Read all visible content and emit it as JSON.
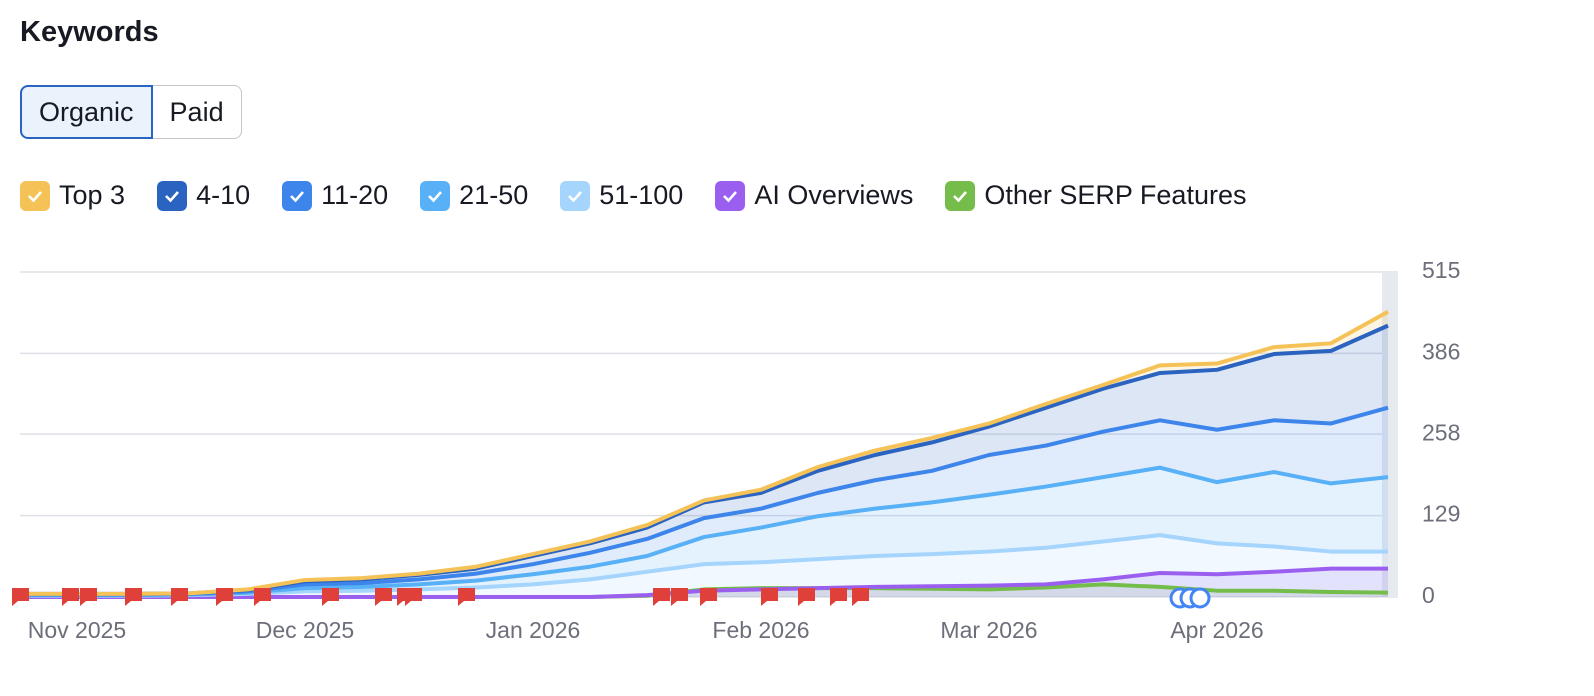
{
  "title": "Keywords",
  "tabs": [
    "Organic",
    "Paid"
  ],
  "chart_data": {
    "type": "line",
    "stacked": true,
    "categories": [
      null,
      "Nov 2025",
      null,
      null,
      null,
      "Dec 2025",
      null,
      null,
      null,
      "Jan 2026",
      null,
      null,
      null,
      "Feb 2026",
      null,
      null,
      null,
      "Mar 2026",
      null,
      null,
      null,
      "Apr 2026",
      null,
      null,
      null
    ],
    "series": [
      {
        "name": "Top 3",
        "color": "#f5c257",
        "stacked": true,
        "values": [
          0,
          0,
          0,
          0,
          1,
          2,
          2,
          2,
          3,
          3,
          3,
          4,
          3,
          5,
          6,
          7,
          7,
          5,
          6,
          6,
          12,
          10,
          11,
          12,
          22
        ]
      },
      {
        "name": "4-10",
        "color": "#2b63c0",
        "stacked": true,
        "values": [
          1,
          1,
          1,
          1,
          2,
          5,
          6,
          7,
          8,
          13,
          15,
          18,
          25,
          25,
          35,
          40,
          45,
          45,
          60,
          68,
          75,
          95,
          105,
          115,
          130
        ]
      },
      {
        "name": "11-20",
        "color": "#3d85ea",
        "stacked": true,
        "values": [
          1,
          1,
          1,
          1,
          2,
          6,
          6,
          8,
          11,
          16,
          22,
          27,
          30,
          30,
          37,
          45,
          50,
          63,
          65,
          72,
          75,
          83,
          82,
          95,
          110
        ]
      },
      {
        "name": "21-50",
        "color": "#58b0f6",
        "stacked": true,
        "values": [
          1,
          1,
          1,
          1,
          2,
          5,
          6,
          8,
          11,
          16,
          20,
          25,
          43,
          55,
          68,
          75,
          82,
          90,
          97,
          102,
          107,
          97,
          118,
          108,
          118
        ]
      },
      {
        "name": "51-100",
        "color": "#a5d4fc",
        "stacked": true,
        "values": [
          2,
          2,
          2,
          3,
          5,
          9,
          10,
          12,
          15,
          20,
          28,
          40,
          52,
          55,
          60,
          65,
          68,
          72,
          78,
          88,
          98,
          85,
          80,
          72,
          72
        ]
      },
      {
        "name": "AI Overviews",
        "color": "#9b5ff0",
        "stacked": false,
        "values": [
          0,
          0,
          0,
          0,
          0,
          0,
          0,
          0,
          0,
          0,
          0,
          3,
          10,
          12,
          14,
          16,
          17,
          18,
          20,
          28,
          38,
          36,
          40,
          45,
          45
        ]
      },
      {
        "name": "Other SERP Features",
        "color": "#75bd4a",
        "stacked": false,
        "values": [
          0,
          0,
          0,
          0,
          0,
          0,
          0,
          0,
          0,
          0,
          0,
          2,
          12,
          14,
          14,
          14,
          13,
          12,
          15,
          20,
          16,
          10,
          10,
          8,
          7
        ]
      }
    ],
    "ylim": [
      0,
      515
    ],
    "yticks": [
      0,
      129,
      258,
      386,
      515
    ],
    "grid": true
  }
}
